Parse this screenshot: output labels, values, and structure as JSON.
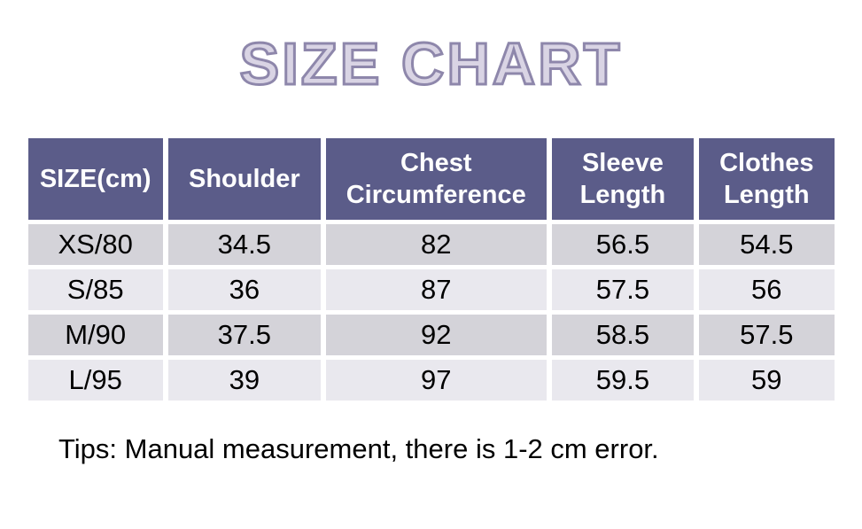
{
  "title": "SIZE CHART",
  "table": {
    "columns": [
      "SIZE(cm)",
      "Shoulder",
      "Chest Circumference",
      "Sleeve Length",
      "Clothes Length"
    ],
    "rows": [
      {
        "cells": [
          "XS/80",
          "34.5",
          "82",
          "56.5",
          "54.5"
        ]
      },
      {
        "cells": [
          "S/85",
          "36",
          "87",
          "57.5",
          "56"
        ]
      },
      {
        "cells": [
          "M/90",
          "37.5",
          "92",
          "58.5",
          "57.5"
        ]
      },
      {
        "cells": [
          "L/95",
          "39",
          "97",
          "59.5",
          "59"
        ]
      }
    ]
  },
  "tips": "Tips: Manual measurement, there is 1-2 cm error.",
  "colors": {
    "header_bg": "#5b5c89",
    "header_text": "#ffffff",
    "row_odd_bg": "#d4d3d9",
    "row_even_bg": "#e9e8ee",
    "title_fill": "#d9d4e4",
    "title_outline": "#8e87ab",
    "body_text": "#000000"
  },
  "chart_data": {
    "type": "table",
    "title": "SIZE CHART",
    "unit": "cm",
    "columns": [
      "SIZE(cm)",
      "Shoulder",
      "Chest Circumference",
      "Sleeve Length",
      "Clothes Length"
    ],
    "rows": [
      [
        "XS/80",
        34.5,
        82,
        56.5,
        54.5
      ],
      [
        "S/85",
        36,
        87,
        57.5,
        56
      ],
      [
        "M/90",
        37.5,
        92,
        58.5,
        57.5
      ],
      [
        "L/95",
        39,
        97,
        59.5,
        59
      ]
    ],
    "note": "Tips: Manual measurement, there is 1-2 cm error."
  }
}
